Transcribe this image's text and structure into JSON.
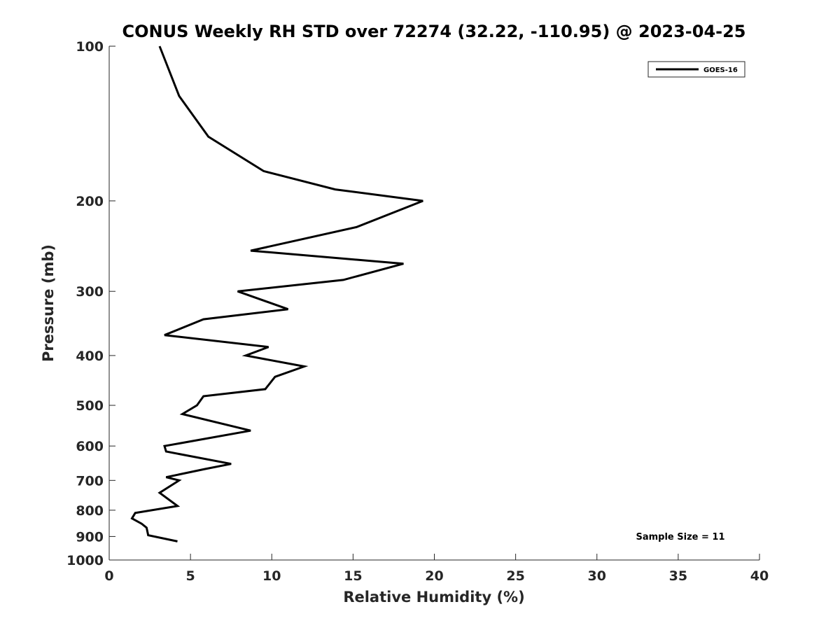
{
  "chart_data": {
    "type": "line",
    "title": "CONUS Weekly RH STD over 72274 (32.22, -110.95) @ 2023-04-25",
    "xlabel": "Relative Humidity (%)",
    "ylabel": "Pressure (mb)",
    "xlim": [
      0,
      40
    ],
    "ylim": [
      100,
      1000
    ],
    "yscale": "log",
    "y_reversed": true,
    "x_ticks": [
      0,
      5,
      10,
      15,
      20,
      25,
      30,
      35,
      40
    ],
    "y_ticks": [
      100,
      200,
      300,
      400,
      500,
      600,
      700,
      800,
      900,
      1000
    ],
    "grid": false,
    "legend_position": "top-right",
    "line_color": "#000000",
    "series": [
      {
        "name": "GOES-16",
        "points": [
          {
            "x": 3.1,
            "p": 100
          },
          {
            "x": 4.3,
            "p": 125
          },
          {
            "x": 6.1,
            "p": 150
          },
          {
            "x": 9.5,
            "p": 175
          },
          {
            "x": 13.9,
            "p": 190
          },
          {
            "x": 19.3,
            "p": 200
          },
          {
            "x": 15.2,
            "p": 225
          },
          {
            "x": 8.7,
            "p": 250
          },
          {
            "x": 18.1,
            "p": 265
          },
          {
            "x": 14.4,
            "p": 285
          },
          {
            "x": 7.9,
            "p": 300
          },
          {
            "x": 11.0,
            "p": 325
          },
          {
            "x": 5.8,
            "p": 340
          },
          {
            "x": 3.4,
            "p": 365
          },
          {
            "x": 9.8,
            "p": 385
          },
          {
            "x": 8.4,
            "p": 400
          },
          {
            "x": 12.0,
            "p": 420
          },
          {
            "x": 10.2,
            "p": 440
          },
          {
            "x": 9.6,
            "p": 465
          },
          {
            "x": 5.8,
            "p": 480
          },
          {
            "x": 5.4,
            "p": 500
          },
          {
            "x": 4.5,
            "p": 520
          },
          {
            "x": 8.7,
            "p": 560
          },
          {
            "x": 3.4,
            "p": 600
          },
          {
            "x": 3.5,
            "p": 615
          },
          {
            "x": 7.5,
            "p": 650
          },
          {
            "x": 5.9,
            "p": 665
          },
          {
            "x": 3.5,
            "p": 690
          },
          {
            "x": 4.3,
            "p": 700
          },
          {
            "x": 3.1,
            "p": 740
          },
          {
            "x": 4.2,
            "p": 785
          },
          {
            "x": 1.6,
            "p": 810
          },
          {
            "x": 1.4,
            "p": 830
          },
          {
            "x": 2.0,
            "p": 850
          },
          {
            "x": 2.3,
            "p": 865
          },
          {
            "x": 2.4,
            "p": 895
          },
          {
            "x": 4.2,
            "p": 920
          }
        ]
      }
    ],
    "annotations": [
      "Sample Size = 11"
    ]
  }
}
